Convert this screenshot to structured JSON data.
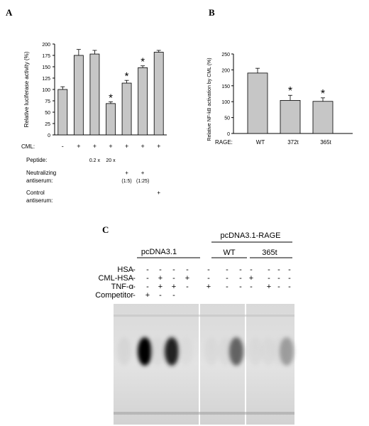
{
  "panels": {
    "a": {
      "letter": "A"
    },
    "b": {
      "letter": "B"
    },
    "c": {
      "letter": "C"
    }
  },
  "chart_data": [
    {
      "type": "bar",
      "panel": "A",
      "ylabel": "Relative luciferase activity (%)",
      "ylim": [
        0,
        200
      ],
      "yticks": [
        0,
        25,
        50,
        75,
        100,
        125,
        150,
        175,
        200
      ],
      "values": [
        100,
        175,
        178,
        69,
        114,
        148,
        182
      ],
      "errors": [
        6,
        13,
        8,
        4,
        6,
        4,
        4
      ],
      "significant": [
        false,
        false,
        false,
        true,
        true,
        true,
        false
      ],
      "star": "*",
      "grid": false,
      "treatment_rows": [
        {
          "label": "CML:",
          "cells": [
            "-",
            "+",
            "+",
            "+",
            "+",
            "+",
            "+"
          ]
        },
        {
          "label": "Peptide:",
          "cells": [
            "",
            "",
            "0.2 x",
            "20 x",
            "",
            "",
            ""
          ]
        },
        {
          "label": "Neutralizing antiserum:",
          "label_lines": [
            "Neutralizing",
            "antiserum:"
          ],
          "cells": [
            "",
            "",
            "",
            "",
            "+",
            "+",
            ""
          ],
          "sub": [
            "",
            "",
            "",
            "",
            "(1:5)",
            "(1:25)",
            ""
          ]
        },
        {
          "label": "Control antiserum:",
          "label_lines": [
            "Control",
            "antiserum:"
          ],
          "cells": [
            "",
            "",
            "",
            "",
            "",
            "",
            "+"
          ]
        }
      ]
    },
    {
      "type": "bar",
      "panel": "B",
      "ylabel": "Relative NF-kB activation by CML (%)",
      "ylim": [
        0,
        250
      ],
      "yticks": [
        0,
        50,
        100,
        150,
        200,
        250
      ],
      "xlabel_prefix": "RAGE:",
      "categories": [
        "WT",
        "372t",
        "365t"
      ],
      "values": [
        190,
        104,
        101
      ],
      "errors": [
        15,
        16,
        11
      ],
      "significant": [
        false,
        true,
        true
      ],
      "star": "*",
      "grid": false
    }
  ],
  "gel": {
    "group_left": "pcDNA3.1",
    "group_right": "pcDNA3.1-RAGE",
    "sub_wt": "WT",
    "sub_365t": "365t",
    "row_labels": [
      "HSA",
      "CML-HSA",
      "TNF-α",
      "Competitor"
    ],
    "lanes": [
      [
        "-",
        "-",
        "-",
        "-",
        "-"
      ],
      [
        "-",
        "-",
        "-",
        "+",
        "+"
      ],
      [
        "-",
        "+",
        "+",
        "-",
        "-"
      ],
      [
        "-",
        "-",
        "+",
        "-",
        "+"
      ],
      [
        "-",
        "+",
        "-"
      ],
      [
        "-",
        "-",
        "+"
      ],
      [
        "-",
        "-",
        "-"
      ],
      [
        "-",
        "-",
        "-"
      ],
      [
        "-",
        "+",
        "-"
      ],
      [
        "-",
        "-",
        "+"
      ],
      [
        "-",
        "-",
        "-"
      ],
      [
        "-",
        "-",
        "-"
      ]
    ],
    "band_intensity": [
      0.08,
      1.0,
      0.05,
      0.85,
      0.03,
      0.05,
      0.05,
      0.6,
      0.05,
      0.05,
      0.03,
      0.4
    ]
  }
}
